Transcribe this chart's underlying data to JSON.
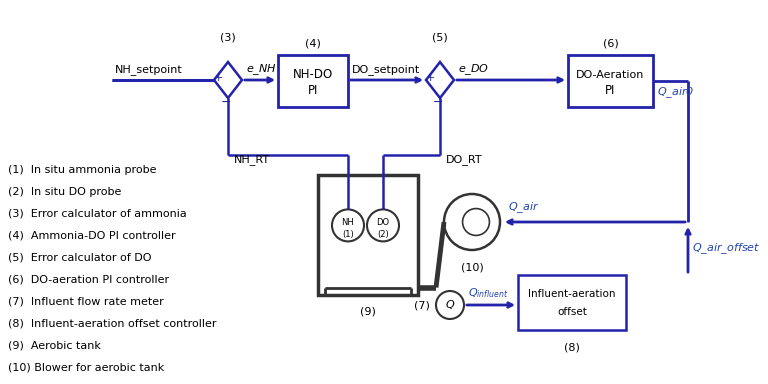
{
  "bg_color": "#ffffff",
  "line_color": "#2222aa",
  "dark_color": "#333333",
  "text_color": "#000000",
  "italic_color": "#2244aa",
  "legend": [
    "(1)  In situ ammonia probe",
    "(2)  In situ DO probe",
    "(3)  Error calculator of ammonia",
    "(4)  Ammonia-DO PI controller",
    "(5)  Error calculator of DO",
    "(6)  DO-aeration PI controller",
    "(7)  Influent flow rate meter",
    "(8)  Influent-aeration offset controller",
    "(9)  Aerobic tank",
    "(10) Blower for aerobic tank"
  ]
}
